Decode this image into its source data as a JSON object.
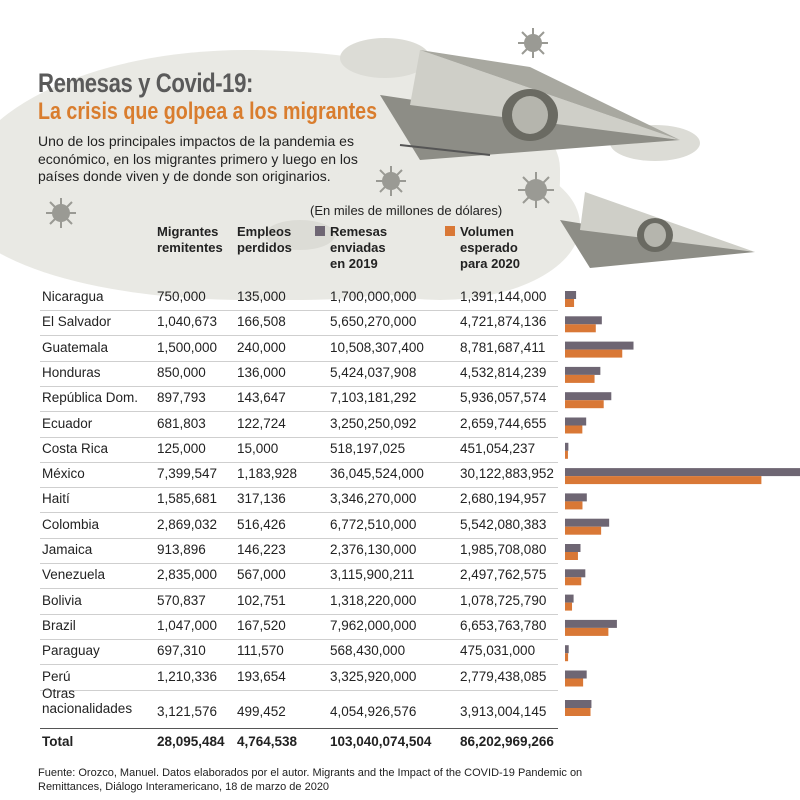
{
  "header": {
    "title": "Remesas y Covid-19:",
    "subtitle": "La crisis que golpea a los migrantes",
    "intro": "Uno de los principales impactos de la pandemia es económico, en los migrantes primero y luego en los países donde viven y de donde son originarios.",
    "units": "(En miles de millones de dólares)"
  },
  "columns": {
    "migrantes": [
      "Migrantes",
      "remitentes"
    ],
    "empleos": [
      "Empleos",
      "perdidos"
    ],
    "remesas": [
      "Remesas",
      "enviadas",
      "en 2019"
    ],
    "volumen": [
      "Volumen",
      "esperado",
      "para 2020"
    ]
  },
  "colors": {
    "remesas_2019": "#6e6673",
    "volumen_2020": "#d97836"
  },
  "rows": [
    {
      "country": "Nicaragua",
      "migrantes": "750,000",
      "empleos": "135,000",
      "remesas": "1,700,000,000",
      "volumen": "1,391,144,000"
    },
    {
      "country": "El Salvador",
      "migrantes": "1,040,673",
      "empleos": "166,508",
      "remesas": "5,650,270,000",
      "volumen": "4,721,874,136"
    },
    {
      "country": "Guatemala",
      "migrantes": "1,500,000",
      "empleos": "240,000",
      "remesas": "10,508,307,400",
      "volumen": "8,781,687,411"
    },
    {
      "country": "Honduras",
      "migrantes": "850,000",
      "empleos": "136,000",
      "remesas": "5,424,037,908",
      "volumen": "4,532,814,239"
    },
    {
      "country": "República Dom.",
      "migrantes": "897,793",
      "empleos": "143,647",
      "remesas": "7,103,181,292",
      "volumen": "5,936,057,574"
    },
    {
      "country": "Ecuador",
      "migrantes": "681,803",
      "empleos": "122,724",
      "remesas": "3,250,250,092",
      "volumen": "2,659,744,655"
    },
    {
      "country": "Costa Rica",
      "migrantes": "125,000",
      "empleos": "15,000",
      "remesas": "518,197,025",
      "volumen": "451,054,237"
    },
    {
      "country": "México",
      "migrantes": "7,399,547",
      "empleos": "1,183,928",
      "remesas": "36,045,524,000",
      "volumen": "30,122,883,952"
    },
    {
      "country": "Haití",
      "migrantes": "1,585,681",
      "empleos": "317,136",
      "remesas": "3,346,270,000",
      "volumen": "2,680,194,957"
    },
    {
      "country": "Colombia",
      "migrantes": "2,869,032",
      "empleos": "516,426",
      "remesas": "6,772,510,000",
      "volumen": "5,542,080,383"
    },
    {
      "country": "Jamaica",
      "migrantes": "913,896",
      "empleos": "146,223",
      "remesas": "2,376,130,000",
      "volumen": "1,985,708,080"
    },
    {
      "country": "Venezuela",
      "migrantes": "2,835,000",
      "empleos": "567,000",
      "remesas": "3,115,900,211",
      "volumen": "2,497,762,575"
    },
    {
      "country": "Bolivia",
      "migrantes": "570,837",
      "empleos": "102,751",
      "remesas": "1,318,220,000",
      "volumen": "1,078,725,790"
    },
    {
      "country": "Brazil",
      "migrantes": "1,047,000",
      "empleos": "167,520",
      "remesas": "7,962,000,000",
      "volumen": "6,653,763,780"
    },
    {
      "country": "Paraguay",
      "migrantes": "697,310",
      "empleos": "111,570",
      "remesas": "568,430,000",
      "volumen": "475,031,000"
    },
    {
      "country": "Perú",
      "migrantes": "1,210,336",
      "empleos": "193,654",
      "remesas": "3,325,920,000",
      "volumen": "2,779,438,085"
    },
    {
      "country": "Otras\nnacionalidades",
      "migrantes": "3,121,576",
      "empleos": "499,452",
      "remesas": "4,054,926,576",
      "volumen": "3,913,004,145"
    }
  ],
  "total": {
    "country": "Total",
    "migrantes": "28,095,484",
    "empleos": "4,764,538",
    "remesas": "103,040,074,504",
    "volumen": "86,202,969,266"
  },
  "source": "Fuente: Orozco, Manuel. Datos elaborados por el autor. Migrants and the Impact of the COVID-19 Pandemic on Remittances, Diálogo Interamericano, 18 de marzo de 2020",
  "chart_data": {
    "type": "bar",
    "orientation": "horizontal",
    "categories": [
      "Nicaragua",
      "El Salvador",
      "Guatemala",
      "Honduras",
      "República Dom.",
      "Ecuador",
      "Costa Rica",
      "México",
      "Haití",
      "Colombia",
      "Jamaica",
      "Venezuela",
      "Bolivia",
      "Brazil",
      "Paraguay",
      "Perú",
      "Otras nacionalidades"
    ],
    "series": [
      {
        "name": "Remesas enviadas en 2019",
        "values": [
          1700000000,
          5650270000,
          10508307400,
          5424037908,
          7103181292,
          3250250092,
          518197025,
          36045524000,
          3346270000,
          6772510000,
          2376130000,
          3115900211,
          1318220000,
          7962000000,
          568430000,
          3325920000,
          4054926576
        ]
      },
      {
        "name": "Volumen esperado para 2020",
        "values": [
          1391144000,
          4721874136,
          8781687411,
          4532814239,
          5936057574,
          2659744655,
          451054237,
          30122883952,
          2680194957,
          5542080383,
          1985708080,
          2497762575,
          1078725790,
          6653763780,
          475031000,
          2779438085,
          3913004145
        ]
      }
    ],
    "title": "Remesas y Covid-19:",
    "xlabel": "",
    "ylabel": ""
  }
}
